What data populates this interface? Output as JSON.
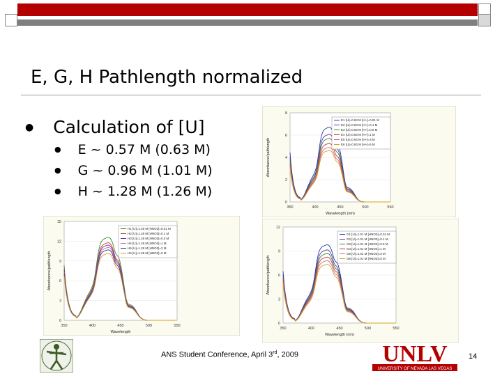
{
  "slide": {
    "title": "E, G, H Pathlength normalized",
    "bullet": "Calculation of [U]",
    "sub_bullets": [
      "E ~ 0.57 M (0.63 M)",
      "G ~ 0.96 M (1.01 M)",
      "H ~ 1.28 M (1.26 M)"
    ],
    "footer_prefix": "ANS Student Conference, April 3",
    "footer_sup": "rd",
    "footer_suffix": ", 2009",
    "page_number": "14",
    "unlv_text": "UNLV",
    "unlv_subtext": "UNIVERSITY OF NEVADA LAS VEGAS"
  },
  "colors": {
    "red_bar": "#b40000",
    "gray_bar": "#7f7f7f"
  },
  "chart_data": [
    {
      "type": "line",
      "xlabel": "Wavelength (nm)",
      "ylabel": "Absorbance/pathlength",
      "xlim": [
        350,
        550
      ],
      "ylim": [
        0,
        8
      ],
      "xticks": [
        "350",
        "400",
        "450",
        "500",
        "550"
      ],
      "yticks": [
        "0",
        "2",
        "4",
        "6",
        "8"
      ],
      "legend": "top-right",
      "series": [
        {
          "name": "E1 [U]=0.63 M [H+]=0.01 M",
          "color": "#1f3aa8",
          "peak": 7.4
        },
        {
          "name": "E2 [U]=0.63 M [H+]=0.1 M",
          "color": "#6a2ca0",
          "peak": 6.7
        },
        {
          "name": "E3 [U]=0.63 M [H+]=0.5 M",
          "color": "#2e8b2e",
          "peak": 6.3
        },
        {
          "name": "E4 [U]=0.63 M [H+]=1 M",
          "color": "#c63a2f",
          "peak": 5.8
        },
        {
          "name": "E5 [U]=0.63 M [H+]=3 M",
          "color": "#d06a9a",
          "peak": 5.4
        },
        {
          "name": "E6 [U]=0.63 M [H+]=5 M",
          "color": "#d9a020",
          "peak": 5.1
        }
      ]
    },
    {
      "type": "line",
      "xlabel": "Wavelength",
      "ylabel": "Absorbance/pathlength",
      "xlim": [
        350,
        550
      ],
      "ylim": [
        0,
        15
      ],
      "xticks": [
        "350",
        "400",
        "450",
        "500",
        "550"
      ],
      "yticks": [
        "0",
        "3",
        "6",
        "9",
        "12",
        "15"
      ],
      "legend": "top-right",
      "series": [
        {
          "name": "H1 [U]=1.26 M [HNO3]=0.01 M",
          "color": "#2e8b2e",
          "peak": 13.9
        },
        {
          "name": "H2 [U]=1.26 M [HNO3]=0.1 M",
          "color": "#c63a2f",
          "peak": 13.0
        },
        {
          "name": "H3 [U]=1.26 M [HNO3]=0.5 M",
          "color": "#6a2ca0",
          "peak": 12.6
        },
        {
          "name": "H4 [U]=1.26 M [HNO3]=1 M",
          "color": "#d06a9a",
          "peak": 12.2
        },
        {
          "name": "H5 [U]=1.26 M [HNO3]=3 M",
          "color": "#1f3aa8",
          "peak": 11.8
        },
        {
          "name": "H6 [U]=1.26 M [HNO3]=5 M",
          "color": "#d9a020",
          "peak": 11.2
        }
      ]
    },
    {
      "type": "line",
      "xlabel": "Wavelength (nm)",
      "ylabel": "Absorbance/pathlength",
      "xlim": [
        350,
        550
      ],
      "ylim": [
        0,
        12
      ],
      "xticks": [
        "350",
        "400",
        "450",
        "500",
        "550"
      ],
      "yticks": [
        "0",
        "3",
        "6",
        "9",
        "12"
      ],
      "legend": "top-right",
      "series": [
        {
          "name": "G1 [U]=1.01 M [HNO3]=0.01 M",
          "color": "#1f3aa8",
          "peak": 10.8
        },
        {
          "name": "G2 [U]=1.01 M [HNO3]=0.1 M",
          "color": "#6a2ca0",
          "peak": 10.1
        },
        {
          "name": "G3 [U]=1.01 M [HNO3]=0.5 M",
          "color": "#2e8b2e",
          "peak": 9.6
        },
        {
          "name": "G4 [U]=1.01 M [HNO3]=1 M",
          "color": "#c63a2f",
          "peak": 9.1
        },
        {
          "name": "G5 [U]=1.01 M [HNO3]=3 M",
          "color": "#d06a9a",
          "peak": 8.6
        },
        {
          "name": "G6 [U]=1.01 M [HNO3]=5 M",
          "color": "#d9a020",
          "peak": 8.1
        }
      ]
    }
  ]
}
